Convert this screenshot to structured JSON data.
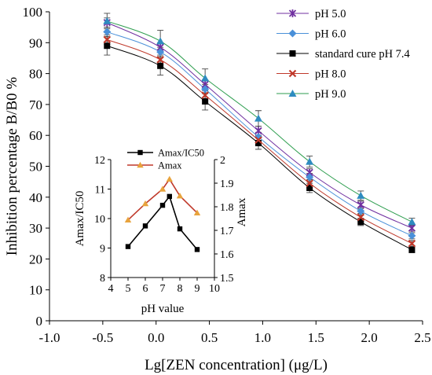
{
  "chart_data": [
    {
      "type": "line",
      "xlabel": "Lg[ZEN concentration] (μg/L)",
      "ylabel": "Inhibition percentage B/B0 %",
      "xlim": [
        -1.0,
        2.5
      ],
      "ylim": [
        0,
        100
      ],
      "xticks": [
        "-1.0",
        "-0.5",
        "0.0",
        "0.5",
        "1.0",
        "1.5",
        "2.0",
        "2.5"
      ],
      "yticks": [
        "0",
        "10",
        "20",
        "30",
        "40",
        "50",
        "60",
        "70",
        "80",
        "90",
        "100"
      ],
      "x": [
        -0.46,
        0.04,
        0.46,
        0.96,
        1.44,
        1.92,
        2.4
      ],
      "grid": false,
      "legend_position": "top-right",
      "series": [
        {
          "name": "pH 5.0",
          "marker": "x-star",
          "color": "#7030A0",
          "values": [
            96.5,
            88.5,
            76.5,
            61.5,
            48.0,
            37.5,
            30.0
          ],
          "error": [
            1.5,
            1.5,
            1.5,
            1.5,
            1.2,
            1.2,
            1.0
          ]
        },
        {
          "name": "pH 6.0",
          "marker": "diamond",
          "color": "#4A90D9",
          "values": [
            93.5,
            87.0,
            75.0,
            59.5,
            46.5,
            35.5,
            27.5
          ],
          "error": [
            1.5,
            1.5,
            1.5,
            1.5,
            1.2,
            1.2,
            1.0
          ]
        },
        {
          "name": "standard cure pH 7.4",
          "marker": "square",
          "color": "#000000",
          "values": [
            89.0,
            82.5,
            71.0,
            57.5,
            43.0,
            32.0,
            23.0
          ],
          "error": [
            3.0,
            3.0,
            2.8,
            2.0,
            1.5,
            1.2,
            1.0
          ]
        },
        {
          "name": "pH 8.0",
          "marker": "x",
          "color": "#C0392B",
          "values": [
            91.0,
            84.5,
            73.0,
            58.5,
            44.5,
            33.5,
            25.0
          ],
          "error": [
            1.5,
            1.5,
            1.5,
            1.5,
            1.2,
            1.2,
            1.0
          ]
        },
        {
          "name": "pH 9.0",
          "marker": "triangle",
          "color": "#2E8BC0",
          "line_color": "#2E9E4F",
          "values": [
            97.0,
            90.5,
            78.5,
            65.5,
            51.5,
            40.5,
            32.0
          ],
          "error": [
            2.5,
            3.5,
            3.0,
            2.5,
            1.8,
            1.5,
            1.2
          ]
        }
      ]
    },
    {
      "type": "line",
      "inset": true,
      "xlabel": "pH value",
      "ylabel": "Amax/IC50",
      "y2label": "Amax",
      "xlim": [
        4,
        10
      ],
      "ylim": [
        8,
        12
      ],
      "y2lim": [
        1.5,
        2.0
      ],
      "xticks": [
        "4",
        "5",
        "6",
        "7",
        "8",
        "9",
        "10"
      ],
      "yticks": [
        "8",
        "9",
        "10",
        "11",
        "12"
      ],
      "y2ticks": [
        "1.5",
        "1.6",
        "1.7",
        "1.8",
        "1.9",
        "2"
      ],
      "legend_position": "top-left",
      "series": [
        {
          "name": "Amax/IC50",
          "axis": "left",
          "marker": "square",
          "color": "#000000",
          "x": [
            5,
            6,
            7,
            7.4,
            8,
            9
          ],
          "values": [
            9.05,
            9.75,
            10.45,
            10.75,
            9.65,
            8.95
          ]
        },
        {
          "name": "Amax",
          "axis": "right",
          "marker": "triangle",
          "color": "#E8A33D",
          "line_color": "#C0392B",
          "x": [
            5,
            6,
            7,
            7.4,
            8,
            9
          ],
          "values": [
            1.744,
            1.813,
            1.875,
            1.917,
            1.846,
            1.774
          ]
        }
      ]
    }
  ]
}
